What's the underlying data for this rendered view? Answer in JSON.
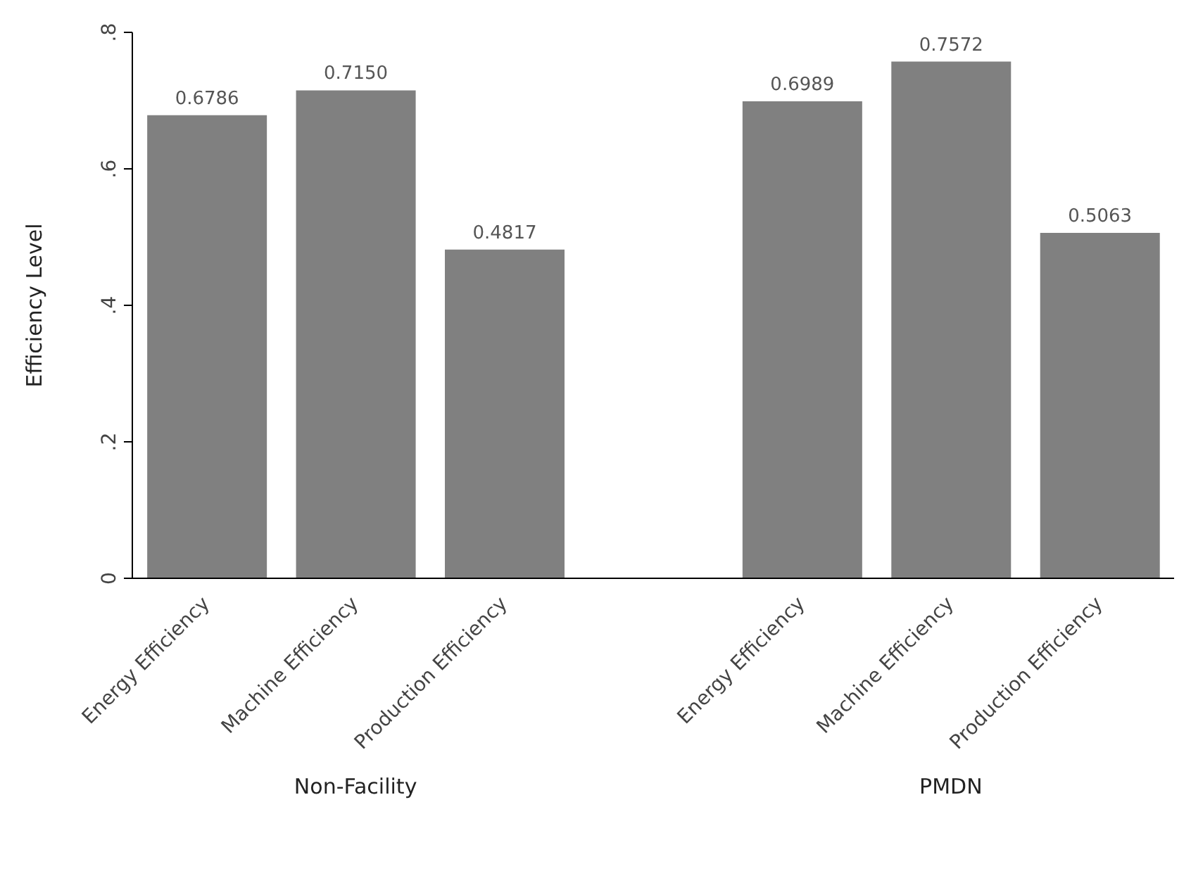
{
  "chart_data": {
    "type": "bar",
    "ylabel": "Efficiency Level",
    "categories": [
      "Energy Efficiency",
      "Machine Efficiency",
      "Production Efficiency",
      null,
      "Energy Efficiency",
      "Machine Efficiency",
      "Production Efficiency"
    ],
    "values": [
      0.6786,
      0.715,
      0.4817,
      null,
      0.6989,
      0.7572,
      0.5063
    ],
    "value_labels": [
      "0.6786",
      "0.7150",
      "0.4817",
      null,
      "0.6989",
      "0.7572",
      "0.5063"
    ],
    "color": "#808080",
    "ylim": [
      0,
      0.8
    ],
    "yticks": [
      0,
      {
        "value": 0.2,
        "label": ".2"
      },
      {
        "value": 0.4,
        "label": ".4"
      },
      {
        "value": 0.6,
        "label": ".6"
      },
      {
        "value": 0.8,
        "label": ".8"
      }
    ],
    "grid": false,
    "annotations": [
      "Non-Facility",
      "PMDN"
    ]
  }
}
